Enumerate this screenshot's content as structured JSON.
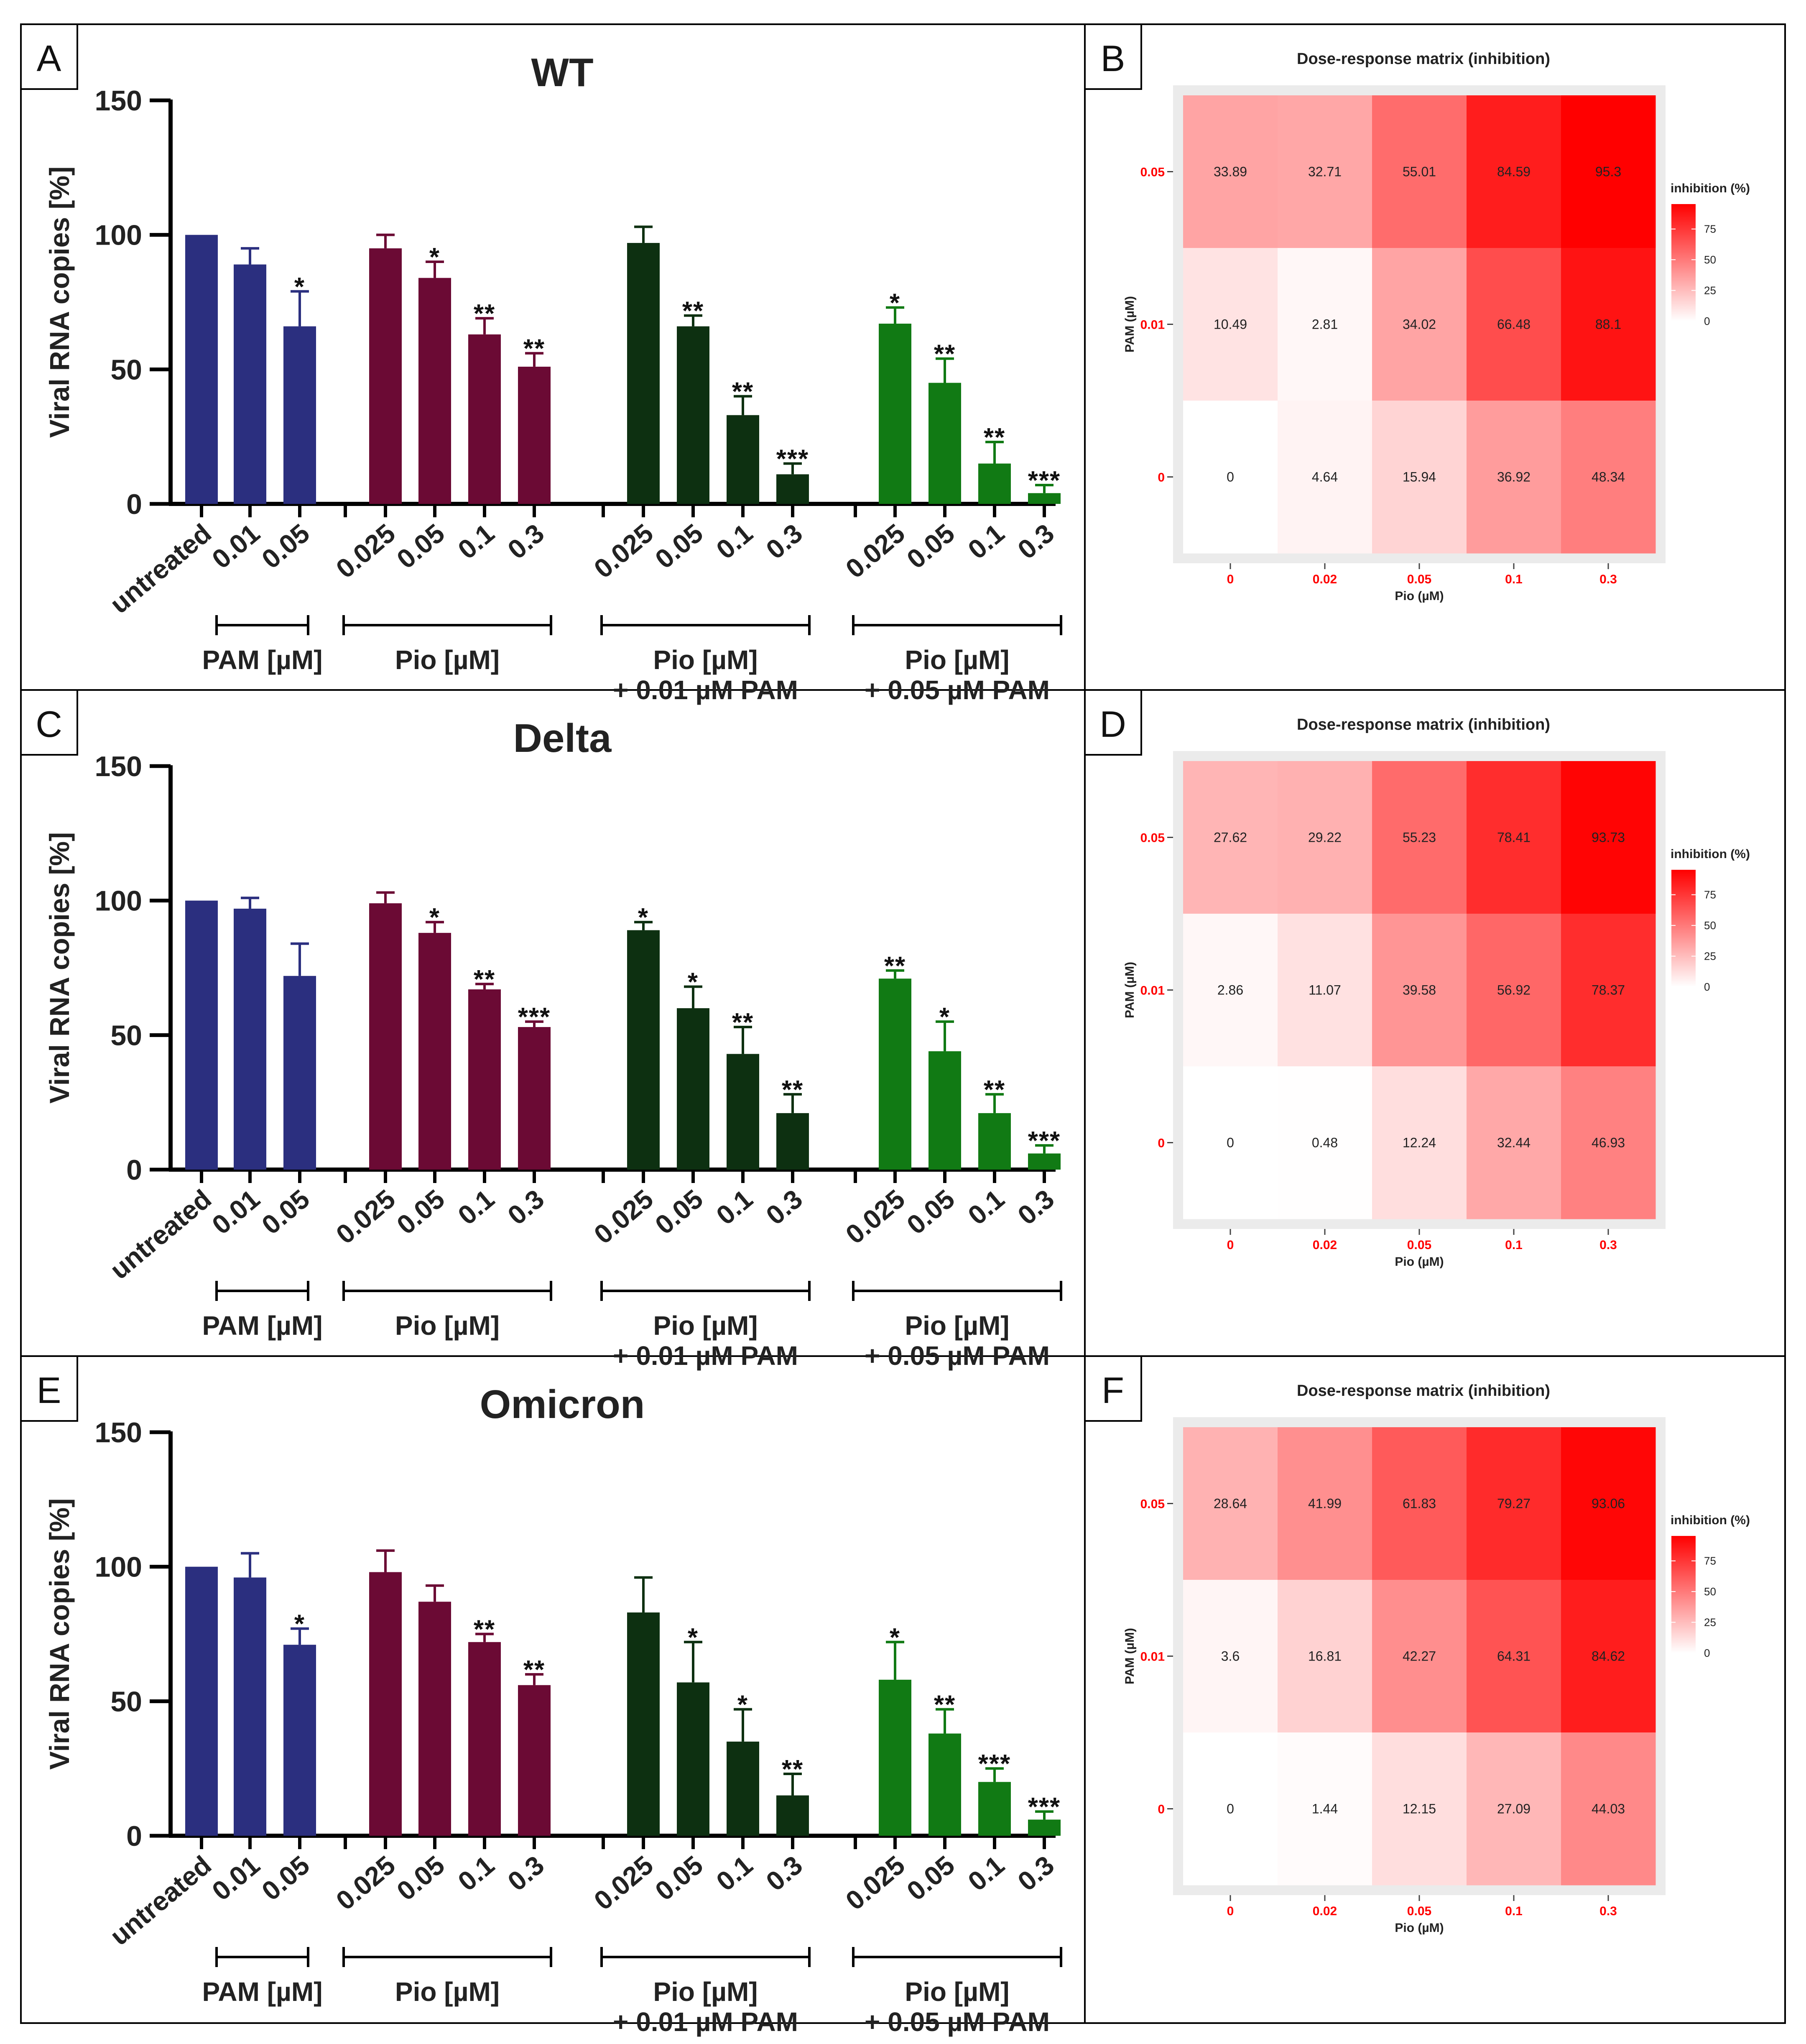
{
  "colors": {
    "pam": "#2b2f7f",
    "pio": "#6b0a34",
    "combo_low": "#0d3011",
    "combo_high": "#117a14",
    "heat_max": "#ff0000",
    "heat_min": "#ffffff",
    "heat_panel_bg": "#ebebeb",
    "heat_tick_label": "#ff0000"
  },
  "bar_common": {
    "ylabel": "Viral RNA copies [%]",
    "ylim": [
      0,
      150
    ],
    "yticks": [
      0,
      50,
      100,
      150
    ],
    "tick_labels": [
      "untreated",
      "0.01",
      "0.05",
      "0.025",
      "0.05",
      "0.1",
      "0.3",
      "0.025",
      "0.05",
      "0.1",
      "0.3",
      "0.025",
      "0.05",
      "0.1",
      "0.3"
    ],
    "group_labels": [
      {
        "lines": [
          "PAM [µM]"
        ],
        "first": 1,
        "last": 2
      },
      {
        "lines": [
          "Pio [µM]"
        ],
        "first": 3,
        "last": 6
      },
      {
        "lines": [
          "Pio [µM]",
          "+ 0.01 µM PAM"
        ],
        "first": 7,
        "last": 10
      },
      {
        "lines": [
          "Pio [µM]",
          "+ 0.05 µM PAM"
        ],
        "first": 11,
        "last": 14
      }
    ]
  },
  "heat_common": {
    "title": "Dose-response matrix (inhibition)",
    "xlabel": "Pio (µM)",
    "ylabel": "PAM (µM)",
    "x_ticks": [
      "0",
      "0.02",
      "0.05",
      "0.1",
      "0.3"
    ],
    "y_ticks": [
      "0.05",
      "0.01",
      "0"
    ],
    "legend_title": "inhibition (%)",
    "legend_ticks": [
      75,
      50,
      25,
      0
    ],
    "legend_max": 95.3
  },
  "panels": [
    {
      "letter": "A",
      "chart_data": {
        "type": "bar",
        "title": "WT",
        "series": [
          {
            "name": "PAM",
            "categories": [
              "untreated",
              "0.01",
              "0.05"
            ],
            "values": [
              100,
              89,
              66
            ],
            "errors": [
              0,
              6,
              13
            ],
            "sig": [
              "",
              "",
              "*"
            ]
          },
          {
            "name": "Pio",
            "categories": [
              "0.025",
              "0.05",
              "0.1",
              "0.3"
            ],
            "values": [
              95,
              84,
              63,
              51
            ],
            "errors": [
              5,
              6,
              6,
              5
            ],
            "sig": [
              "",
              "*",
              "**",
              "**"
            ]
          },
          {
            "name": "Pio + 0.01 µM PAM",
            "categories": [
              "0.025",
              "0.05",
              "0.1",
              "0.3"
            ],
            "values": [
              97,
              66,
              33,
              11
            ],
            "errors": [
              6,
              4,
              7,
              4
            ],
            "sig": [
              "",
              "**",
              "**",
              "***"
            ]
          },
          {
            "name": "Pio + 0.05 µM PAM",
            "categories": [
              "0.025",
              "0.05",
              "0.1",
              "0.3"
            ],
            "values": [
              67,
              45,
              15,
              4
            ],
            "errors": [
              6,
              9,
              8,
              3
            ],
            "sig": [
              "*",
              "**",
              "**",
              "***"
            ]
          }
        ]
      }
    },
    {
      "letter": "B",
      "chart_data": {
        "type": "heatmap",
        "title": "Dose-response matrix (inhibition)",
        "x": [
          "0",
          "0.02",
          "0.05",
          "0.1",
          "0.3"
        ],
        "y": [
          "0.05",
          "0.01",
          "0"
        ],
        "values": [
          [
            "33.89",
            "32.71",
            "55.01",
            "84.59",
            "95.3"
          ],
          [
            "10.49",
            "2.81",
            "34.02",
            "66.48",
            "88.1"
          ],
          [
            "0",
            "4.64",
            "15.94",
            "36.92",
            "48.34"
          ]
        ]
      }
    },
    {
      "letter": "C",
      "chart_data": {
        "type": "bar",
        "title": "Delta",
        "series": [
          {
            "name": "PAM",
            "categories": [
              "untreated",
              "0.01",
              "0.05"
            ],
            "values": [
              100,
              97,
              72
            ],
            "errors": [
              0,
              4,
              12
            ],
            "sig": [
              "",
              "",
              ""
            ]
          },
          {
            "name": "Pio",
            "categories": [
              "0.025",
              "0.05",
              "0.1",
              "0.3"
            ],
            "values": [
              99,
              88,
              67,
              53
            ],
            "errors": [
              4,
              4,
              2,
              2
            ],
            "sig": [
              "",
              "*",
              "**",
              "***"
            ]
          },
          {
            "name": "Pio + 0.01 µM PAM",
            "categories": [
              "0.025",
              "0.05",
              "0.1",
              "0.3"
            ],
            "values": [
              89,
              60,
              43,
              21
            ],
            "errors": [
              3,
              8,
              10,
              7
            ],
            "sig": [
              "*",
              "*",
              "**",
              "**"
            ]
          },
          {
            "name": "Pio + 0.05 µM PAM",
            "categories": [
              "0.025",
              "0.05",
              "0.1",
              "0.3"
            ],
            "values": [
              71,
              44,
              21,
              6
            ],
            "errors": [
              3,
              11,
              7,
              3
            ],
            "sig": [
              "**",
              "*",
              "**",
              "***"
            ]
          }
        ]
      }
    },
    {
      "letter": "D",
      "chart_data": {
        "type": "heatmap",
        "title": "Dose-response matrix (inhibition)",
        "x": [
          "0",
          "0.02",
          "0.05",
          "0.1",
          "0.3"
        ],
        "y": [
          "0.05",
          "0.01",
          "0"
        ],
        "values": [
          [
            "27.62",
            "29.22",
            "55.23",
            "78.41",
            "93.73"
          ],
          [
            "2.86",
            "11.07",
            "39.58",
            "56.92",
            "78.37"
          ],
          [
            "0",
            "0.48",
            "12.24",
            "32.44",
            "46.93"
          ]
        ]
      }
    },
    {
      "letter": "E",
      "chart_data": {
        "type": "bar",
        "title": "Omicron",
        "series": [
          {
            "name": "PAM",
            "categories": [
              "untreated",
              "0.01",
              "0.05"
            ],
            "values": [
              100,
              96,
              71
            ],
            "errors": [
              0,
              9,
              6
            ],
            "sig": [
              "",
              "",
              "*"
            ]
          },
          {
            "name": "Pio",
            "categories": [
              "0.025",
              "0.05",
              "0.1",
              "0.3"
            ],
            "values": [
              98,
              87,
              72,
              56
            ],
            "errors": [
              8,
              6,
              3,
              4
            ],
            "sig": [
              "",
              "",
              "**",
              "**"
            ]
          },
          {
            "name": "Pio + 0.01 µM PAM",
            "categories": [
              "0.025",
              "0.05",
              "0.1",
              "0.3"
            ],
            "values": [
              83,
              57,
              35,
              15
            ],
            "errors": [
              13,
              15,
              12,
              8
            ],
            "sig": [
              "",
              "*",
              "*",
              "**"
            ]
          },
          {
            "name": "Pio + 0.05 µM PAM",
            "categories": [
              "0.025",
              "0.05",
              "0.1",
              "0.3"
            ],
            "values": [
              58,
              38,
              20,
              6
            ],
            "errors": [
              14,
              9,
              5,
              3
            ],
            "sig": [
              "*",
              "**",
              "***",
              "***"
            ]
          }
        ]
      }
    },
    {
      "letter": "F",
      "chart_data": {
        "type": "heatmap",
        "title": "Dose-response matrix (inhibition)",
        "x": [
          "0",
          "0.02",
          "0.05",
          "0.1",
          "0.3"
        ],
        "y": [
          "0.05",
          "0.01",
          "0"
        ],
        "values": [
          [
            "28.64",
            "41.99",
            "61.83",
            "79.27",
            "93.06"
          ],
          [
            "3.6",
            "16.81",
            "42.27",
            "64.31",
            "84.62"
          ],
          [
            "0",
            "1.44",
            "12.15",
            "27.09",
            "44.03"
          ]
        ]
      }
    }
  ]
}
